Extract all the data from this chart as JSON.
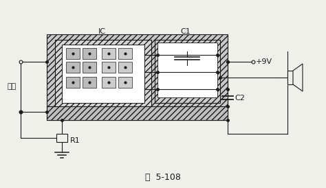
{
  "bg_color": "#f0f0eb",
  "line_color": "#1a1a1a",
  "title": "图  5-108",
  "title_fontsize": 9,
  "label_IC": "IC",
  "label_C1": "C1",
  "label_C2": "C2",
  "label_R1": "R1",
  "label_9V": "+9V",
  "label_input": "输入",
  "fig_width": 4.74,
  "fig_height": 2.74,
  "dpi": 100
}
